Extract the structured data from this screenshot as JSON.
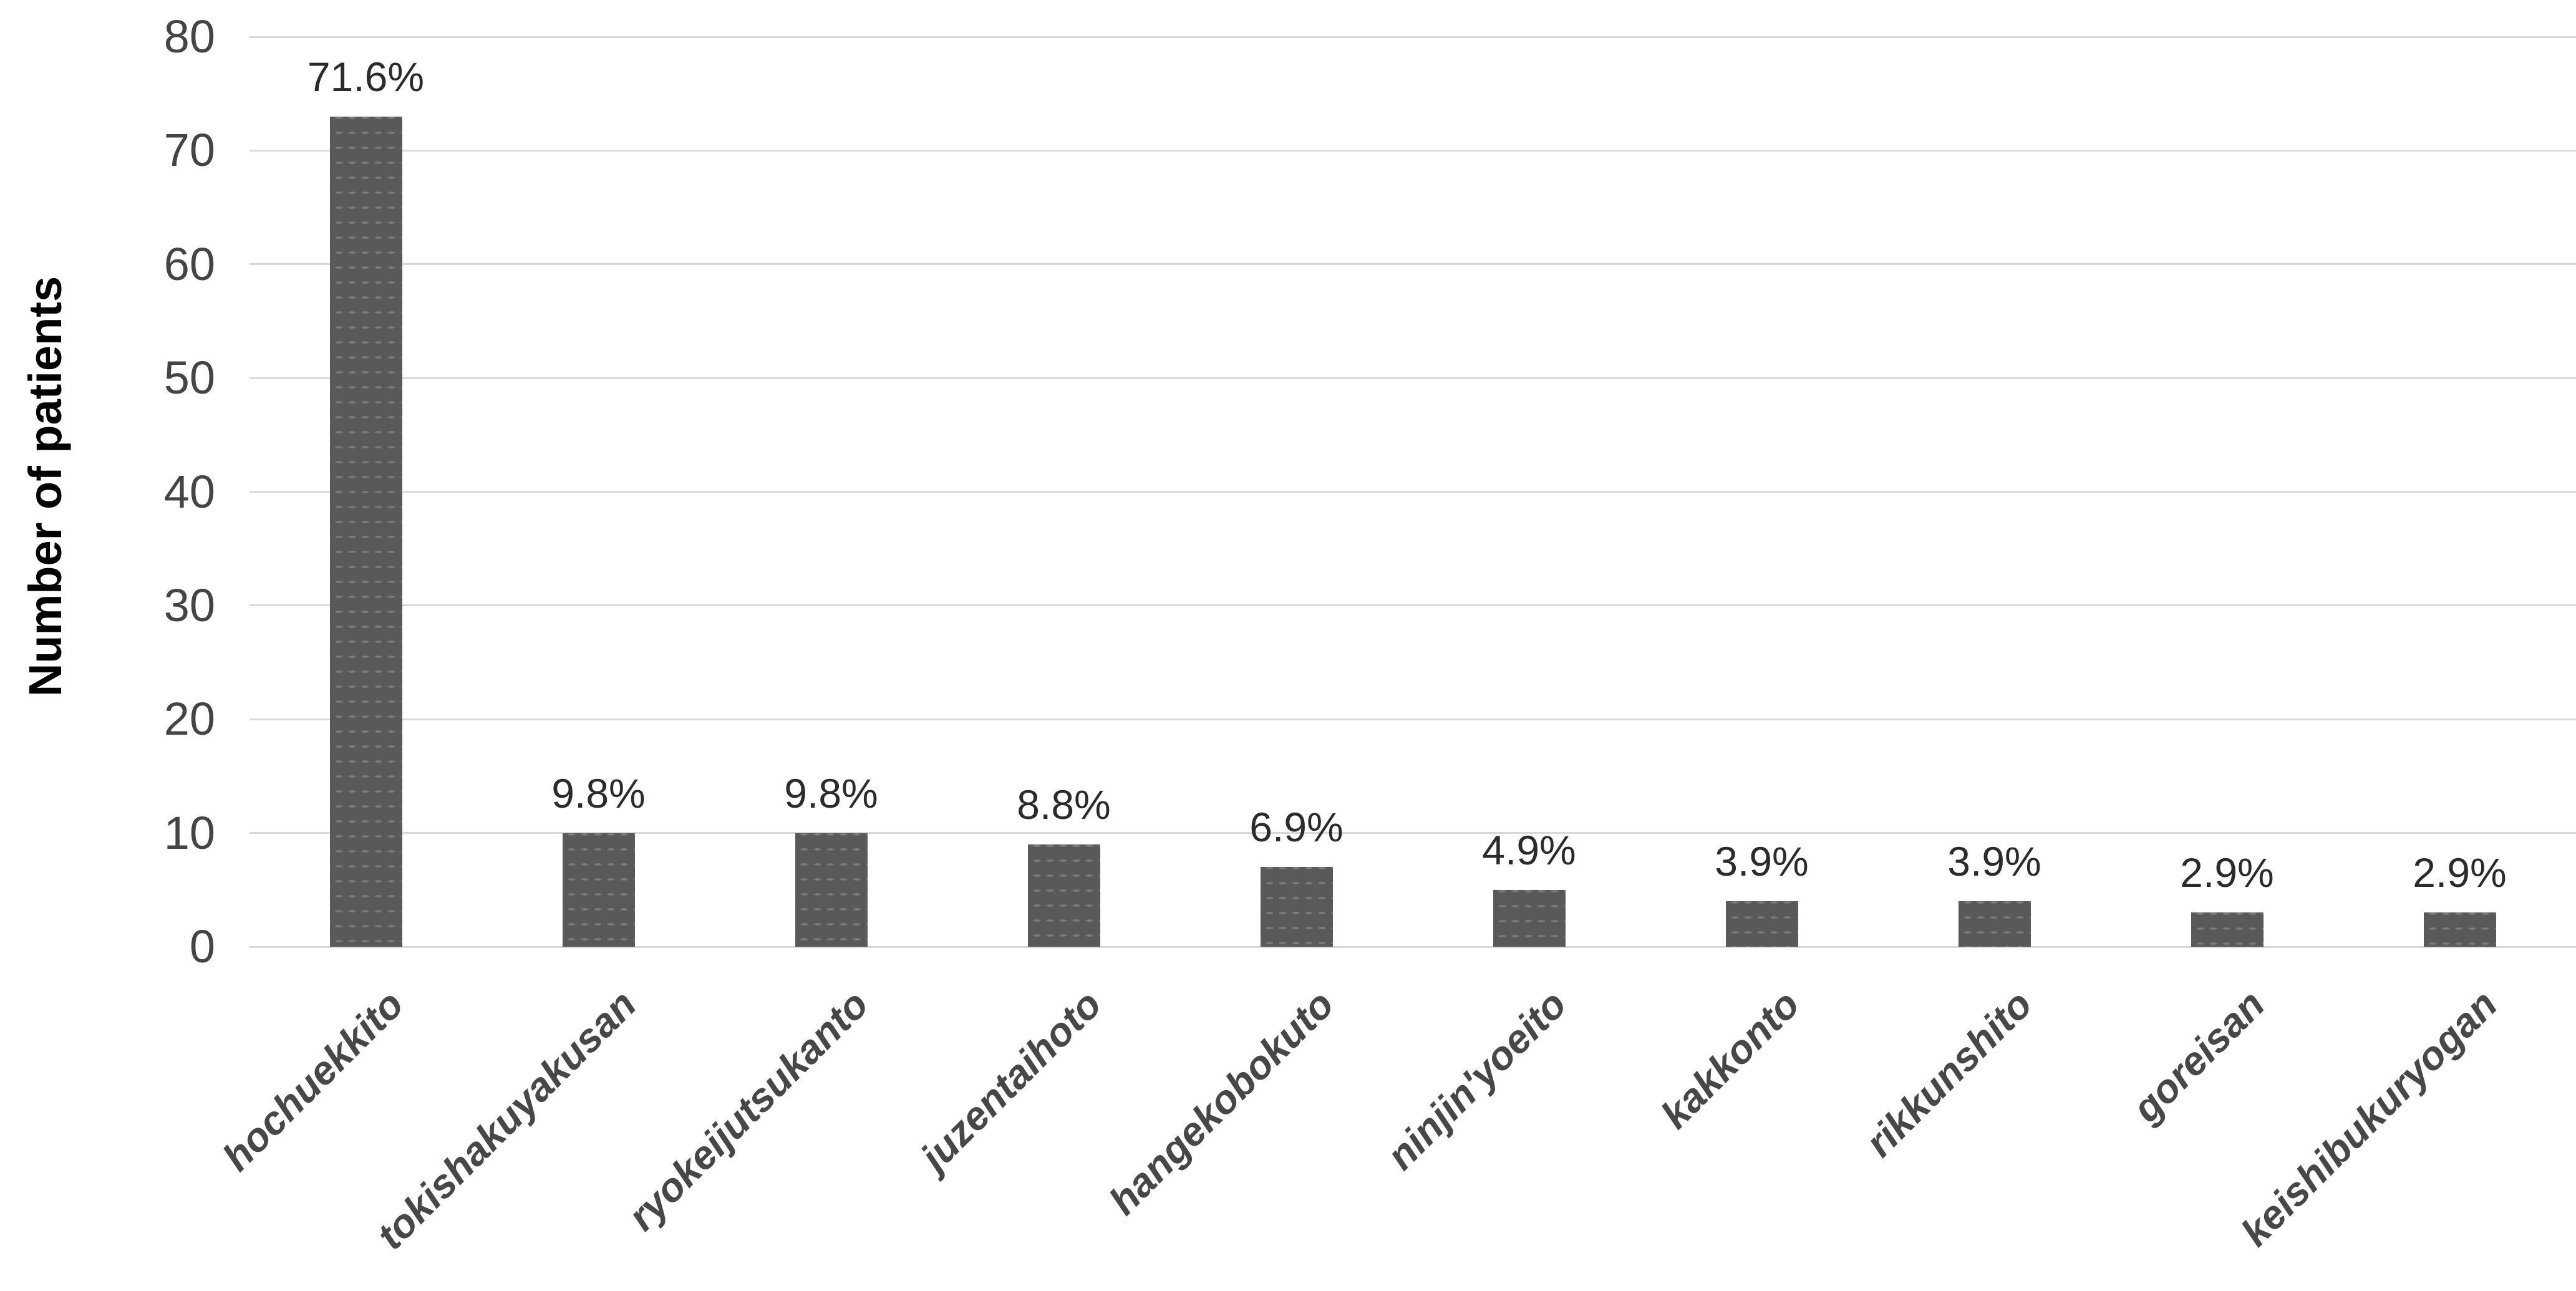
{
  "chart_data": {
    "type": "bar",
    "title": "",
    "xlabel": "",
    "ylabel": "Number of patients",
    "categories": [
      "hochuekkito",
      "tokishakuyakusan",
      "ryokeijutsukanto",
      "juzentaihoto",
      "hangekobokuto",
      "ninjin'yoeito",
      "kakkonto",
      "rikkunshito",
      "goreisan",
      "keishibukuryogan"
    ],
    "values": [
      73,
      10,
      10,
      9,
      7,
      5,
      4,
      4,
      3,
      3
    ],
    "bar_labels": [
      "71.6%",
      "9.8%",
      "9.8%",
      "8.8%",
      "6.9%",
      "4.9%",
      "3.9%",
      "3.9%",
      "2.9%",
      "2.9%"
    ],
    "ylim": [
      0,
      80
    ],
    "yticks": [
      0,
      10,
      20,
      30,
      40,
      50,
      60,
      70,
      80
    ],
    "grid": true,
    "legend": false,
    "bar_color": "#595959",
    "gridline_color": "#d9d9d9"
  }
}
